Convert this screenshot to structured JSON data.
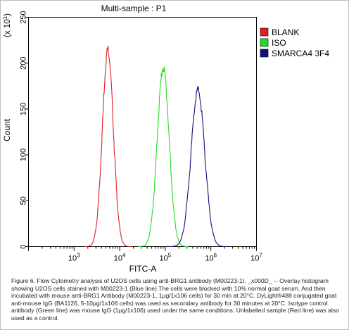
{
  "chart_data": {
    "type": "line",
    "title": "Multi-sample : P1",
    "xlabel": "FITC-A",
    "ylabel": "Count",
    "y_multiplier": "(x 10",
    "y_multiplier_exp": "1",
    "y_multiplier_close": ")",
    "x_scale": "log",
    "xlim": [
      100,
      10000000
    ],
    "ylim": [
      0,
      250
    ],
    "grid": false,
    "legend_position": "top-right",
    "x_ticks": [
      {
        "value": 100,
        "base": "10",
        "exp": "2"
      },
      {
        "value": 1000,
        "base": "10",
        "exp": "3"
      },
      {
        "value": 10000,
        "base": "10",
        "exp": "4"
      },
      {
        "value": 100000,
        "base": "10",
        "exp": "5"
      },
      {
        "value": 1000000,
        "base": "10",
        "exp": "6"
      },
      {
        "value": 10000000,
        "base": "10",
        "exp": "7"
      }
    ],
    "y_ticks": [
      {
        "value": 0,
        "label": "0"
      },
      {
        "value": 50,
        "label": "50"
      },
      {
        "value": 100,
        "label": "100"
      },
      {
        "value": 150,
        "label": "150"
      },
      {
        "value": 200,
        "label": "200"
      },
      {
        "value": 250,
        "label": "250"
      }
    ],
    "series": [
      {
        "name": "BLANK",
        "color": "#e02020",
        "peak_x": 5500,
        "peak_y": 215,
        "log_sigma": 0.12
      },
      {
        "name": "ISO",
        "color": "#22dd22",
        "peak_x": 90000,
        "peak_y": 195,
        "log_sigma": 0.13
      },
      {
        "name": "SMARCA4 3F4",
        "color": "#101080",
        "peak_x": 520000,
        "peak_y": 170,
        "log_sigma": 0.15
      }
    ]
  },
  "caption": "Figure 6. Flow Cytometry analysis of U2OS cells using anti-BRG1 antibody (M00223-1). _x000D_ -- Overlay histogram showing U2OS cells stained with M00223-1 (Blue line).The cells were blocked with 10% normal goat serum. And then incubated with mouse anti-BRG1 Antibody (M00223-1, 1μg/1x106 cells) for 30 min at 20°C. DyLight®488 conjugated goat anti-mouse IgG (BA1126, 5-10μg/1x106 cells) was used as secondary antibody for 30 minutes at 20°C. Isotype control antibody (Green line) was mouse IgG (1μg/1x106) used under the same conditions. Unlabelled sample (Red line) was also used as a control."
}
